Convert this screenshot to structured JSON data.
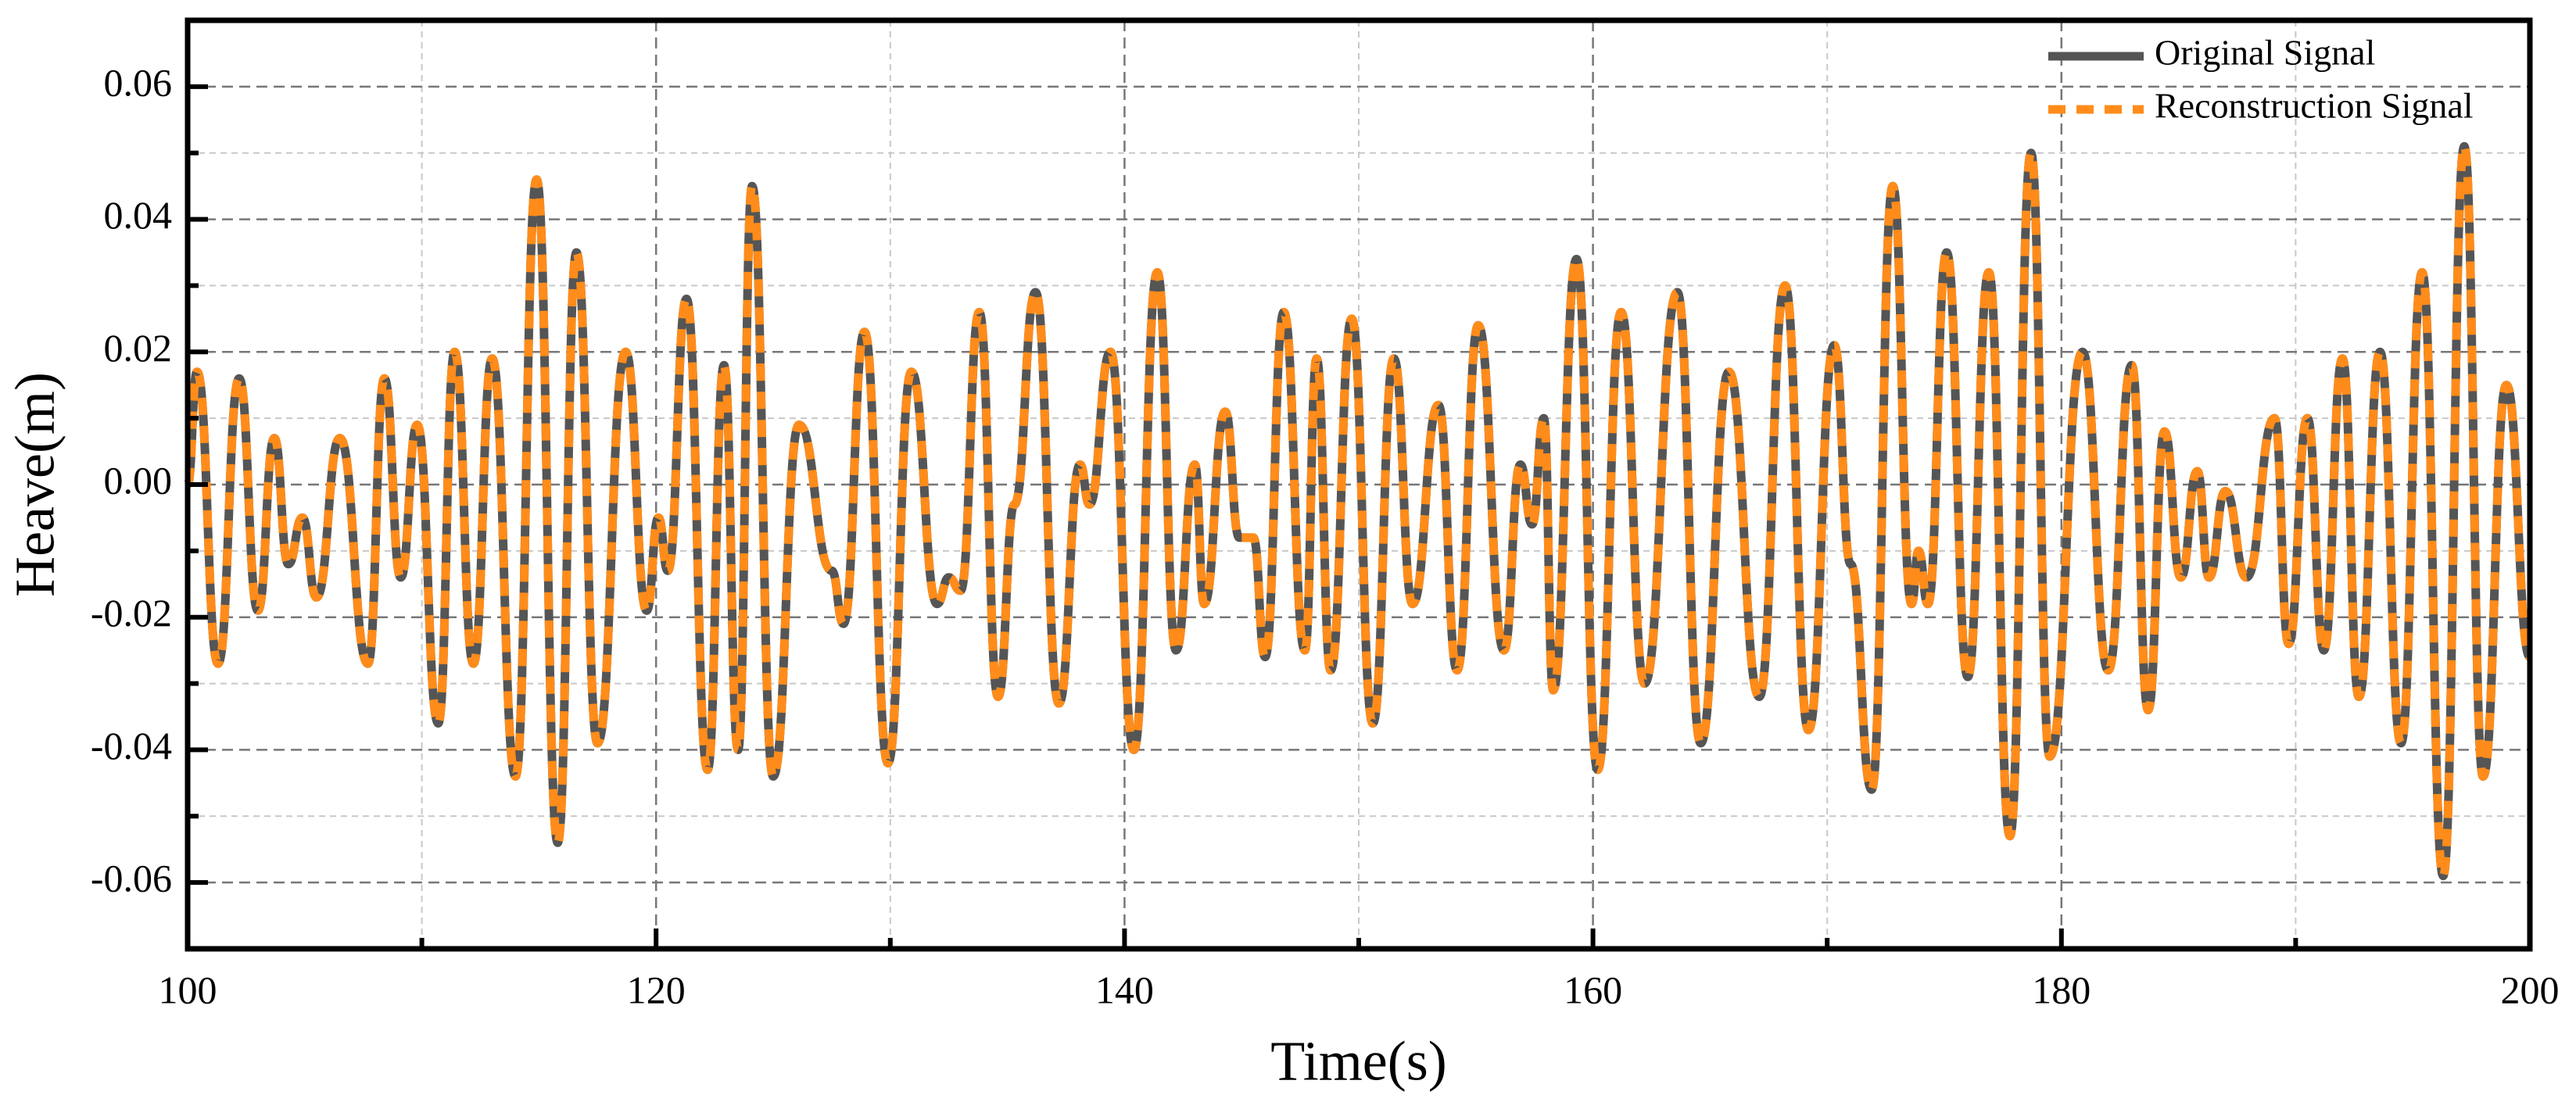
{
  "chart_data": {
    "type": "line",
    "xlabel": "Time(s)",
    "ylabel": "Heave(m)",
    "xlim": [
      100,
      200
    ],
    "ylim": [
      -0.07,
      0.07
    ],
    "xticks": [
      100,
      120,
      140,
      160,
      180,
      200
    ],
    "xminorticks": [
      110,
      130,
      150,
      170,
      190
    ],
    "yticks": [
      -0.06,
      -0.04,
      -0.02,
      {
        "value": 0,
        "label": "0.00"
      },
      0.02,
      0.04,
      0.06
    ],
    "yminorticks": [
      -0.05,
      -0.03,
      -0.01,
      0.01,
      0.03,
      0.05
    ],
    "grid": true,
    "legend": "upper right",
    "x": [
      100.0,
      100.4,
      101.3,
      102.2,
      103.0,
      103.7,
      104.3,
      104.9,
      105.5,
      106.5,
      107.7,
      108.4,
      109.1,
      109.8,
      110.7,
      111.4,
      112.2,
      113.0,
      114.0,
      114.9,
      115.8,
      116.6,
      117.5,
      118.7,
      119.6,
      120.1,
      120.5,
      121.3,
      122.2,
      122.9,
      123.5,
      124.1,
      125.0,
      126.1,
      127.5,
      128.0,
      128.9,
      129.9,
      130.9,
      132.0,
      132.5,
      133.0,
      133.8,
      134.6,
      135.3,
      136.2,
      137.2,
      138.1,
      138.5,
      139.4,
      140.4,
      141.4,
      142.2,
      143.0,
      143.4,
      144.3,
      144.9,
      145.5,
      146.0,
      146.8,
      147.7,
      148.2,
      148.8,
      149.7,
      150.6,
      151.5,
      152.3,
      153.4,
      154.2,
      155.1,
      156.2,
      156.9,
      157.4,
      157.9,
      158.3,
      159.3,
      160.2,
      161.2,
      162.2,
      163.6,
      164.6,
      165.8,
      167.1,
      168.2,
      169.2,
      170.3,
      171.0,
      171.9,
      172.8,
      173.6,
      173.9,
      174.3,
      175.1,
      176.0,
      176.9,
      177.8,
      178.7,
      179.5,
      180.9,
      182.0,
      183.0,
      183.7,
      184.4,
      185.1,
      185.8,
      186.3,
      187.0,
      187.9,
      189.1,
      189.7,
      190.5,
      191.2,
      192.0,
      192.7,
      193.6,
      194.5,
      195.4,
      196.3,
      197.2,
      198.0,
      199.0,
      200.0
    ],
    "series": [
      {
        "name": "Original Signal",
        "color": "#555555",
        "values": [
          0.0,
          0.017,
          -0.027,
          0.016,
          -0.019,
          0.007,
          -0.012,
          -0.005,
          -0.017,
          0.007,
          -0.027,
          0.016,
          -0.014,
          0.009,
          -0.036,
          0.02,
          -0.027,
          0.019,
          -0.044,
          0.046,
          -0.054,
          0.035,
          -0.039,
          0.02,
          -0.019,
          -0.005,
          -0.013,
          0.028,
          -0.043,
          0.018,
          -0.04,
          0.045,
          -0.044,
          0.009,
          -0.013,
          -0.021,
          0.023,
          -0.042,
          0.017,
          -0.018,
          -0.014,
          -0.016,
          0.026,
          -0.032,
          -0.003,
          0.029,
          -0.033,
          0.003,
          -0.003,
          0.02,
          -0.04,
          0.032,
          -0.025,
          0.003,
          -0.018,
          0.011,
          -0.008,
          -0.008,
          -0.026,
          0.026,
          -0.025,
          0.019,
          -0.028,
          0.025,
          -0.036,
          0.019,
          -0.018,
          0.012,
          -0.028,
          0.024,
          -0.025,
          0.003,
          -0.006,
          0.01,
          -0.031,
          0.034,
          -0.043,
          0.026,
          -0.03,
          0.029,
          -0.039,
          0.017,
          -0.032,
          0.03,
          -0.037,
          0.021,
          -0.012,
          -0.046,
          0.045,
          -0.018,
          -0.01,
          -0.018,
          0.035,
          -0.029,
          0.032,
          -0.053,
          0.05,
          -0.041,
          0.02,
          -0.028,
          0.018,
          -0.034,
          0.008,
          -0.014,
          0.002,
          -0.014,
          -0.001,
          -0.014,
          0.01,
          -0.024,
          0.01,
          -0.025,
          0.019,
          -0.032,
          0.02,
          -0.039,
          0.032,
          -0.059,
          0.051,
          -0.044,
          0.015,
          -0.026
        ]
      },
      {
        "name": "Reconstruction Signal",
        "color": "#ff8c1a",
        "values": [
          0.0,
          0.017,
          -0.027,
          0.016,
          -0.019,
          0.007,
          -0.012,
          -0.005,
          -0.017,
          0.007,
          -0.027,
          0.016,
          -0.014,
          0.009,
          -0.036,
          0.02,
          -0.027,
          0.019,
          -0.044,
          0.046,
          -0.054,
          0.035,
          -0.039,
          0.02,
          -0.019,
          -0.005,
          -0.013,
          0.028,
          -0.043,
          0.018,
          -0.04,
          0.045,
          -0.044,
          0.009,
          -0.013,
          -0.021,
          0.023,
          -0.042,
          0.017,
          -0.018,
          -0.014,
          -0.016,
          0.026,
          -0.032,
          -0.003,
          0.029,
          -0.033,
          0.003,
          -0.003,
          0.02,
          -0.04,
          0.032,
          -0.025,
          0.003,
          -0.018,
          0.011,
          -0.008,
          -0.008,
          -0.026,
          0.026,
          -0.025,
          0.019,
          -0.028,
          0.025,
          -0.036,
          0.019,
          -0.018,
          0.012,
          -0.028,
          0.024,
          -0.025,
          0.003,
          -0.006,
          0.01,
          -0.031,
          0.034,
          -0.043,
          0.026,
          -0.03,
          0.029,
          -0.039,
          0.017,
          -0.032,
          0.03,
          -0.037,
          0.021,
          -0.012,
          -0.046,
          0.045,
          -0.018,
          -0.01,
          -0.018,
          0.035,
          -0.029,
          0.032,
          -0.053,
          0.05,
          -0.041,
          0.02,
          -0.028,
          0.018,
          -0.034,
          0.008,
          -0.014,
          0.002,
          -0.014,
          -0.001,
          -0.014,
          0.01,
          -0.024,
          0.01,
          -0.025,
          0.019,
          -0.032,
          0.02,
          -0.039,
          0.032,
          -0.059,
          0.051,
          -0.044,
          0.015,
          -0.026
        ]
      }
    ]
  }
}
